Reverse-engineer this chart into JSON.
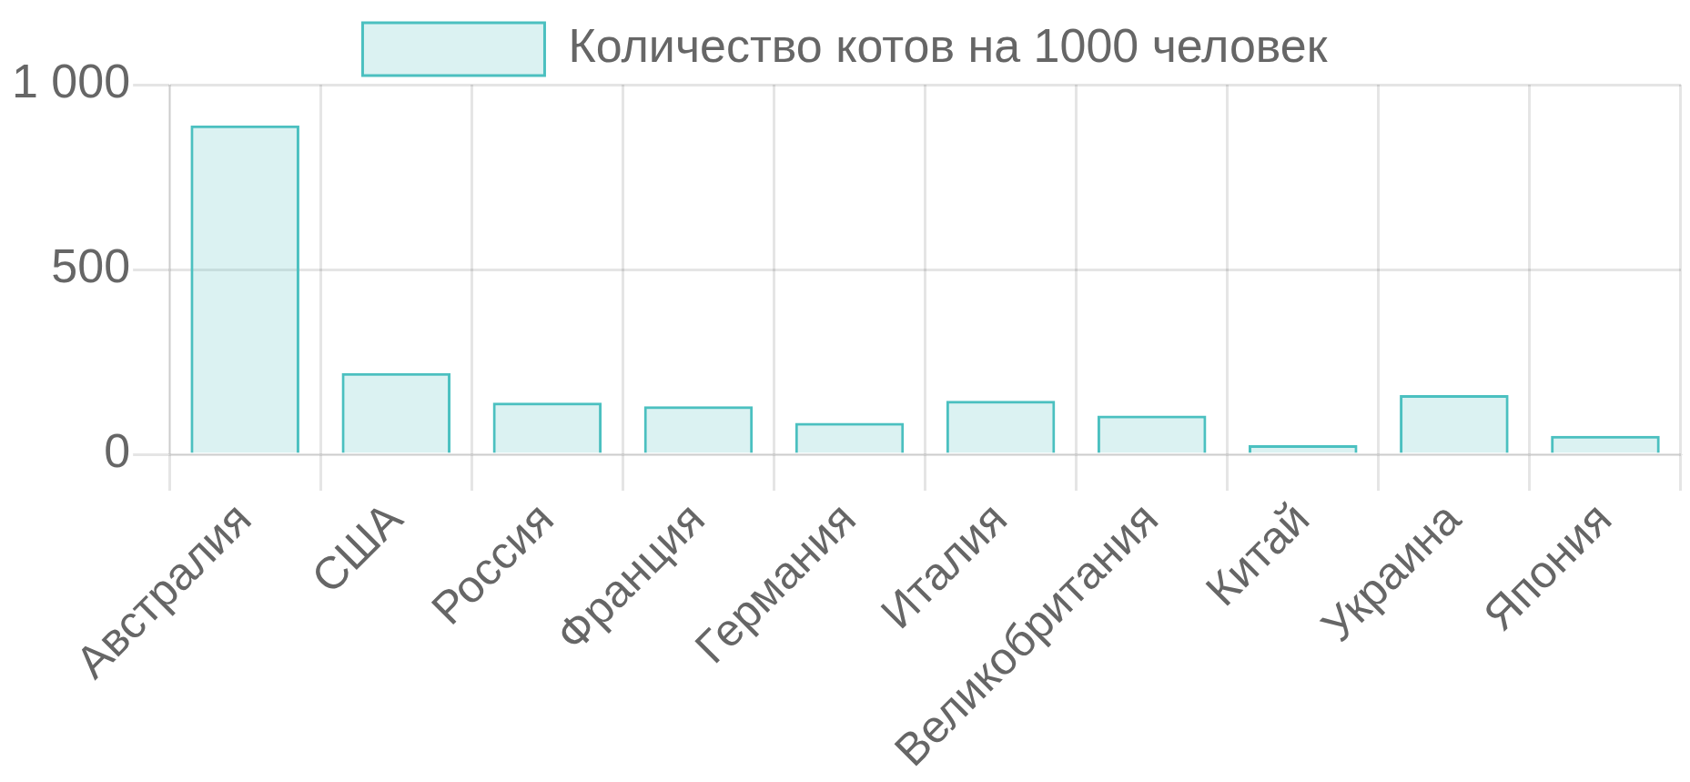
{
  "chart_data": {
    "type": "bar",
    "categories": [
      "Австралия",
      "США",
      "Россия",
      "Франция",
      "Германия",
      "Италия",
      "Великобритания",
      "Китай",
      "Украина",
      "Япония"
    ],
    "series": [
      {
        "name": "Количество котов на 1000 человек",
        "color": "#4bc0c0",
        "values": [
          890,
          220,
          140,
          130,
          85,
          145,
          105,
          25,
          160,
          50
        ]
      }
    ],
    "ylim": [
      0,
      1000
    ],
    "yticks": [
      0,
      500,
      {
        "value": 1000,
        "label": "1 000"
      }
    ],
    "grid": true,
    "legend": "top"
  }
}
